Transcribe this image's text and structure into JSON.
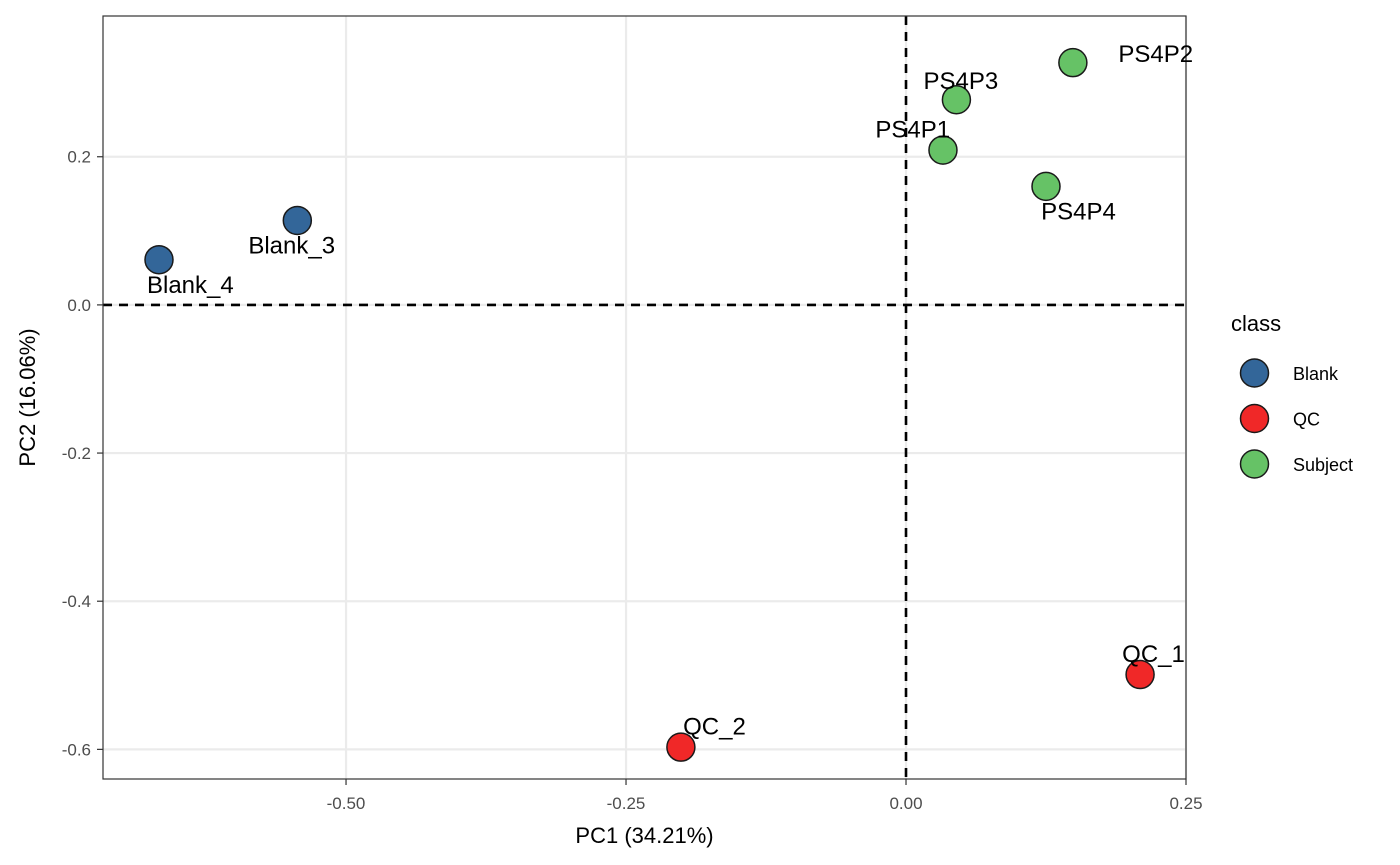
{
  "chart_data": {
    "type": "scatter",
    "xlabel": "PC1 (34.21%)",
    "ylabel": "PC2 (16.06%)",
    "xlim": [
      -0.717,
      0.25
    ],
    "ylim": [
      -0.64,
      0.39
    ],
    "x_ticks": [
      -0.5,
      -0.25,
      0.0,
      0.25
    ],
    "x_tick_labels": [
      "-0.50",
      "-0.25",
      "0.00",
      "0.25"
    ],
    "y_ticks": [
      -0.6,
      -0.4,
      -0.2,
      0.0,
      0.2
    ],
    "y_tick_labels": [
      "-0.6",
      "-0.4",
      "-0.2",
      "0.0",
      "0.2"
    ],
    "grid": true,
    "reference_lines": {
      "x": 0,
      "y": 0,
      "style": "dashed"
    },
    "legend": {
      "title": "class",
      "position": "right",
      "entries": [
        {
          "name": "Blank",
          "color": "#336699"
        },
        {
          "name": "QC",
          "color": "#f02828"
        },
        {
          "name": "Subject",
          "color": "#66c266"
        }
      ]
    },
    "points": [
      {
        "label": "Blank_3",
        "class": "Blank",
        "x": -0.5435,
        "y": 0.114,
        "label_dx": -0.005,
        "label_dy": -0.034
      },
      {
        "label": "Blank_4",
        "class": "Blank",
        "x": -0.667,
        "y": 0.061,
        "label_dx": 0.028,
        "label_dy": -0.034
      },
      {
        "label": "PS4P1",
        "class": "Subject",
        "x": 0.033,
        "y": 0.209,
        "label_dx": -0.027,
        "label_dy": 0.028
      },
      {
        "label": "PS4P2",
        "class": "Subject",
        "x": 0.149,
        "y": 0.327,
        "label_dx": 0.074,
        "label_dy": 0.012
      },
      {
        "label": "PS4P3",
        "class": "Subject",
        "x": 0.045,
        "y": 0.277,
        "label_dx": 0.004,
        "label_dy": 0.025
      },
      {
        "label": "PS4P4",
        "class": "Subject",
        "x": 0.125,
        "y": 0.16,
        "label_dx": 0.029,
        "label_dy": -0.034
      },
      {
        "label": "QC_1",
        "class": "QC",
        "x": 0.209,
        "y": -0.499,
        "label_dx": 0.012,
        "label_dy": 0.028
      },
      {
        "label": "QC_2",
        "class": "QC",
        "x": -0.201,
        "y": -0.597,
        "label_dx": 0.03,
        "label_dy": 0.028
      }
    ]
  }
}
